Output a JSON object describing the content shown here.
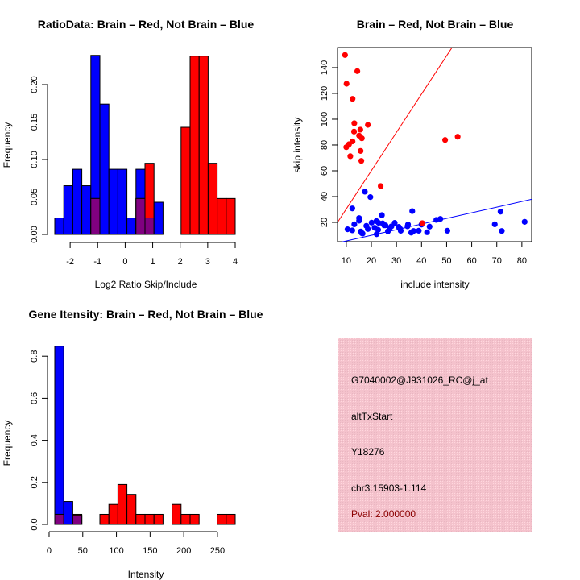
{
  "chart_data": [
    {
      "type": "bar",
      "subtype": "overlaid-histogram",
      "title": "RatioData: Brain – Red, Not Brain – Blue",
      "xlabel": "Log2 Ratio Skip/Include",
      "ylabel": "Frequency",
      "bin_start": -2.56,
      "bin_width": 0.328,
      "xlim": [
        -2.56,
        4.0
      ],
      "ylim": [
        0,
        0.25
      ],
      "xticks": [
        -2,
        -1,
        0,
        1,
        2,
        3,
        4
      ],
      "xtick_labels": [
        "-2",
        "-1",
        "0",
        "1",
        "2",
        "3",
        "4"
      ],
      "yticks": [
        0,
        0.05,
        0.1,
        0.15,
        0.2
      ],
      "ytick_labels": [
        "0.00",
        "0.05",
        "0.10",
        "0.15",
        "0.20"
      ],
      "series": [
        {
          "name": "Not Brain",
          "color": "#0000ff",
          "values": [
            0.022,
            0.065,
            0.087,
            0.065,
            0.239,
            0.174,
            0.087,
            0.087,
            0.022,
            0.087,
            0.022,
            0.043,
            0,
            0,
            0,
            0,
            0,
            0,
            0,
            0
          ]
        },
        {
          "name": "Brain",
          "color": "#ff0000",
          "values": [
            0,
            0,
            0,
            0,
            0.048,
            0,
            0,
            0,
            0,
            0.048,
            0.095,
            0,
            0,
            0,
            0.143,
            0.238,
            0.238,
            0.095,
            0.048,
            0.048
          ]
        }
      ],
      "overlap_color": "#800080"
    },
    {
      "type": "scatter",
      "title": "Brain – Red, Not Brain – Blue",
      "xlabel": "include intensity",
      "ylabel": "skip intensity",
      "xlim": [
        6.5,
        83.9
      ],
      "ylim": [
        5,
        155.6
      ],
      "xticks": [
        10,
        20,
        30,
        40,
        50,
        60,
        70,
        80
      ],
      "xtick_labels": [
        "10",
        "20",
        "30",
        "40",
        "50",
        "60",
        "70",
        "80"
      ],
      "yticks": [
        20,
        40,
        60,
        80,
        100,
        120,
        140
      ],
      "ytick_labels": [
        "20",
        "40",
        "60",
        "80",
        "100",
        "120",
        "140"
      ],
      "series": [
        {
          "name": "Brain",
          "color": "#ff0000",
          "fit": {
            "slope": 2.97,
            "intercept": 0.7
          },
          "points": [
            [
              9.5,
              149.8
            ],
            [
              10.1,
              127.5
            ],
            [
              14.4,
              137.3
            ],
            [
              12.5,
              115.8
            ],
            [
              13.2,
              96.9
            ],
            [
              13.1,
              90.4
            ],
            [
              15.6,
              91.9
            ],
            [
              18.6,
              95.6
            ],
            [
              15.1,
              87.3
            ],
            [
              16.2,
              85.2
            ],
            [
              10.0,
              78.3
            ],
            [
              11.1,
              80.6
            ],
            [
              12.5,
              82.8
            ],
            [
              15.7,
              75.4
            ],
            [
              11.6,
              71.3
            ],
            [
              16.0,
              67.7
            ],
            [
              23.7,
              48.1
            ],
            [
              49.4,
              83.9
            ],
            [
              54.4,
              86.4
            ],
            [
              40.3,
              19.4
            ]
          ]
        },
        {
          "name": "Not Brain",
          "color": "#0000ff",
          "fit": {
            "slope": 0.437,
            "intercept": 1.2
          },
          "points": [
            [
              17.4,
              43.8
            ],
            [
              19.6,
              39.6
            ],
            [
              12.4,
              30.8
            ],
            [
              36.3,
              28.7
            ],
            [
              71.5,
              28.3
            ],
            [
              81.1,
              20.4
            ],
            [
              69.2,
              18.5
            ],
            [
              72.0,
              13.3
            ],
            [
              50.3,
              13.5
            ],
            [
              47.5,
              22.7
            ],
            [
              45.9,
              21.9
            ],
            [
              43.2,
              16.7
            ],
            [
              42.2,
              12.3
            ],
            [
              40.0,
              18.3
            ],
            [
              38.9,
              13.5
            ],
            [
              36.8,
              13.3
            ],
            [
              35.9,
              12.0
            ],
            [
              34.6,
              18.3
            ],
            [
              34.4,
              16.9
            ],
            [
              31.7,
              13.5
            ],
            [
              31.5,
              14.9
            ],
            [
              30.9,
              16.5
            ],
            [
              29.3,
              19.6
            ],
            [
              28.0,
              16.9
            ],
            [
              26.6,
              13.1
            ],
            [
              25.6,
              17.7
            ],
            [
              24.2,
              25.6
            ],
            [
              24.5,
              19.2
            ],
            [
              22.9,
              19.6
            ],
            [
              22.0,
              21.0
            ],
            [
              22.7,
              14.2
            ],
            [
              22.1,
              10.8
            ],
            [
              20.1,
              19.8
            ],
            [
              18.6,
              14.8
            ],
            [
              18.0,
              17.3
            ],
            [
              16.5,
              11.3
            ],
            [
              15.8,
              12.9
            ],
            [
              16.2,
              11.6
            ],
            [
              15.1,
              23.3
            ],
            [
              15.1,
              21.3
            ],
            [
              13.2,
              18.5
            ],
            [
              12.4,
              13.8
            ],
            [
              10.5,
              14.6
            ],
            [
              25.1,
              17.7
            ],
            [
              27.4,
              15.8
            ],
            [
              21.3,
              15.8
            ]
          ]
        }
      ]
    },
    {
      "type": "bar",
      "subtype": "overlaid-histogram",
      "title": "Gene Itensity: Brain – Red, Not Brain – Blue",
      "xlabel": "Intensity",
      "ylabel": "Frequency",
      "bin_start": 8.4,
      "bin_width": 13.4,
      "xlim": [
        8.4,
        276.4
      ],
      "ylim": [
        0,
        0.85
      ],
      "xticks": [
        0,
        50,
        100,
        150,
        200,
        250
      ],
      "xtick_labels": [
        "0",
        "50",
        "100",
        "150",
        "200",
        "250"
      ],
      "yticks": [
        0,
        0.2,
        0.4,
        0.6,
        0.8
      ],
      "ytick_labels": [
        "0.0",
        "0.2",
        "0.4",
        "0.6",
        "0.8"
      ],
      "series": [
        {
          "name": "Not Brain",
          "color": "#0000ff",
          "values": [
            0.848,
            0.109,
            0.043,
            0,
            0,
            0,
            0,
            0,
            0,
            0,
            0,
            0,
            0,
            0,
            0,
            0,
            0,
            0,
            0,
            0
          ]
        },
        {
          "name": "Brain",
          "color": "#ff0000",
          "values": [
            0.048,
            0,
            0.048,
            0,
            0,
            0.048,
            0.095,
            0.19,
            0.143,
            0.048,
            0.048,
            0.048,
            0,
            0.095,
            0.048,
            0.048,
            0,
            0,
            0.048,
            0.048
          ]
        }
      ],
      "overlap_color": "#800080"
    }
  ],
  "info_panel": {
    "background": "#f4c2cc",
    "probe_id": "G7040002@J931026_RC@j_at",
    "event_type": "altTxStart",
    "accession": "Y18276",
    "location": "chr3.15903-1.114",
    "pval": "Pval: 2.000000",
    "pval_color": "#8b0000"
  }
}
